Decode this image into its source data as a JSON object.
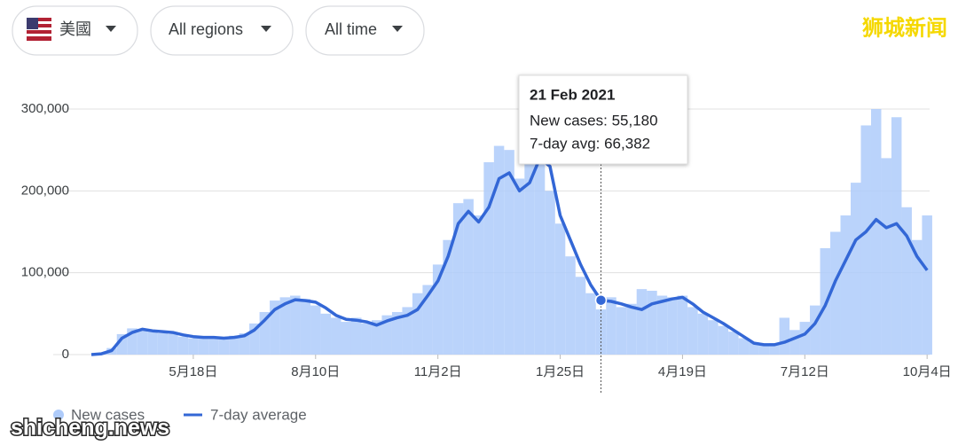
{
  "controls": {
    "country": "美國",
    "region": "All regions",
    "time": "All time"
  },
  "watermarks": {
    "top": "狮城新闻",
    "bottom": "shicheng.news"
  },
  "chart_data": {
    "type": "bar-line",
    "categories": [
      null,
      null,
      null,
      null,
      null,
      null,
      null,
      null,
      null,
      null,
      "5月18日",
      null,
      null,
      null,
      null,
      null,
      null,
      null,
      null,
      null,
      null,
      null,
      "8月10日",
      null,
      null,
      null,
      null,
      null,
      null,
      null,
      null,
      null,
      null,
      null,
      "11月2日",
      null,
      null,
      null,
      null,
      null,
      null,
      null,
      null,
      null,
      null,
      null,
      "1月25日",
      null,
      null,
      null,
      null,
      null,
      null,
      null,
      null,
      null,
      null,
      null,
      "4月19日",
      null,
      null,
      null,
      null,
      null,
      null,
      null,
      null,
      null,
      null,
      null,
      "7月12日",
      null,
      null,
      null,
      null,
      null,
      null,
      null,
      null,
      null,
      null,
      null,
      "10月4日"
    ],
    "series": [
      {
        "name": "New cases",
        "color": "#aecbfa",
        "values": [
          0,
          2000,
          8000,
          25000,
          32000,
          30000,
          28000,
          26000,
          25000,
          22000,
          20000,
          21000,
          22000,
          21000,
          23000,
          26000,
          38000,
          52000,
          66000,
          70000,
          72000,
          68000,
          60000,
          50000,
          45000,
          40000,
          45000,
          38000,
          42000,
          48000,
          52000,
          58000,
          75000,
          85000,
          110000,
          140000,
          185000,
          190000,
          170000,
          235000,
          255000,
          250000,
          215000,
          280000,
          255000,
          200000,
          160000,
          120000,
          95000,
          75000,
          55180,
          70000,
          58000,
          62000,
          80000,
          78000,
          72000,
          70000,
          72000,
          58000,
          50000,
          42000,
          35000,
          28000,
          20000,
          15000,
          12000,
          14000,
          45000,
          30000,
          40000,
          60000,
          130000,
          150000,
          170000,
          210000,
          280000,
          300000,
          240000,
          290000,
          180000,
          140000,
          170000
        ]
      },
      {
        "name": "7-day average",
        "color": "#3367d6",
        "values": [
          0,
          1000,
          5000,
          20000,
          27000,
          31000,
          29000,
          28000,
          27000,
          24000,
          22000,
          21000,
          21000,
          20000,
          21000,
          23000,
          30000,
          42000,
          55000,
          62000,
          67000,
          66000,
          64000,
          57000,
          48000,
          43000,
          42000,
          40000,
          36000,
          41000,
          45000,
          48000,
          55000,
          72000,
          90000,
          120000,
          160000,
          175000,
          162000,
          180000,
          215000,
          222000,
          200000,
          210000,
          240000,
          230000,
          170000,
          140000,
          110000,
          85000,
          66382,
          65000,
          62000,
          58000,
          55000,
          62000,
          65000,
          68000,
          70000,
          62000,
          52000,
          45000,
          38000,
          30000,
          22000,
          14000,
          12000,
          12000,
          15000,
          20000,
          25000,
          38000,
          60000,
          90000,
          115000,
          140000,
          150000,
          165000,
          155000,
          160000,
          145000,
          120000,
          103000
        ]
      }
    ],
    "ylim": [
      0,
      300000
    ],
    "yticks": [
      0,
      {
        "value": 100000,
        "label": "100,000"
      },
      {
        "value": 200000,
        "label": "200,000"
      },
      {
        "value": 300000,
        "label": "300,000"
      }
    ],
    "grid": true,
    "tooltip": {
      "index": 50,
      "title": "21 Feb 2021",
      "lines": [
        "New cases: 55,180",
        "7-day avg: 66,382"
      ]
    }
  }
}
